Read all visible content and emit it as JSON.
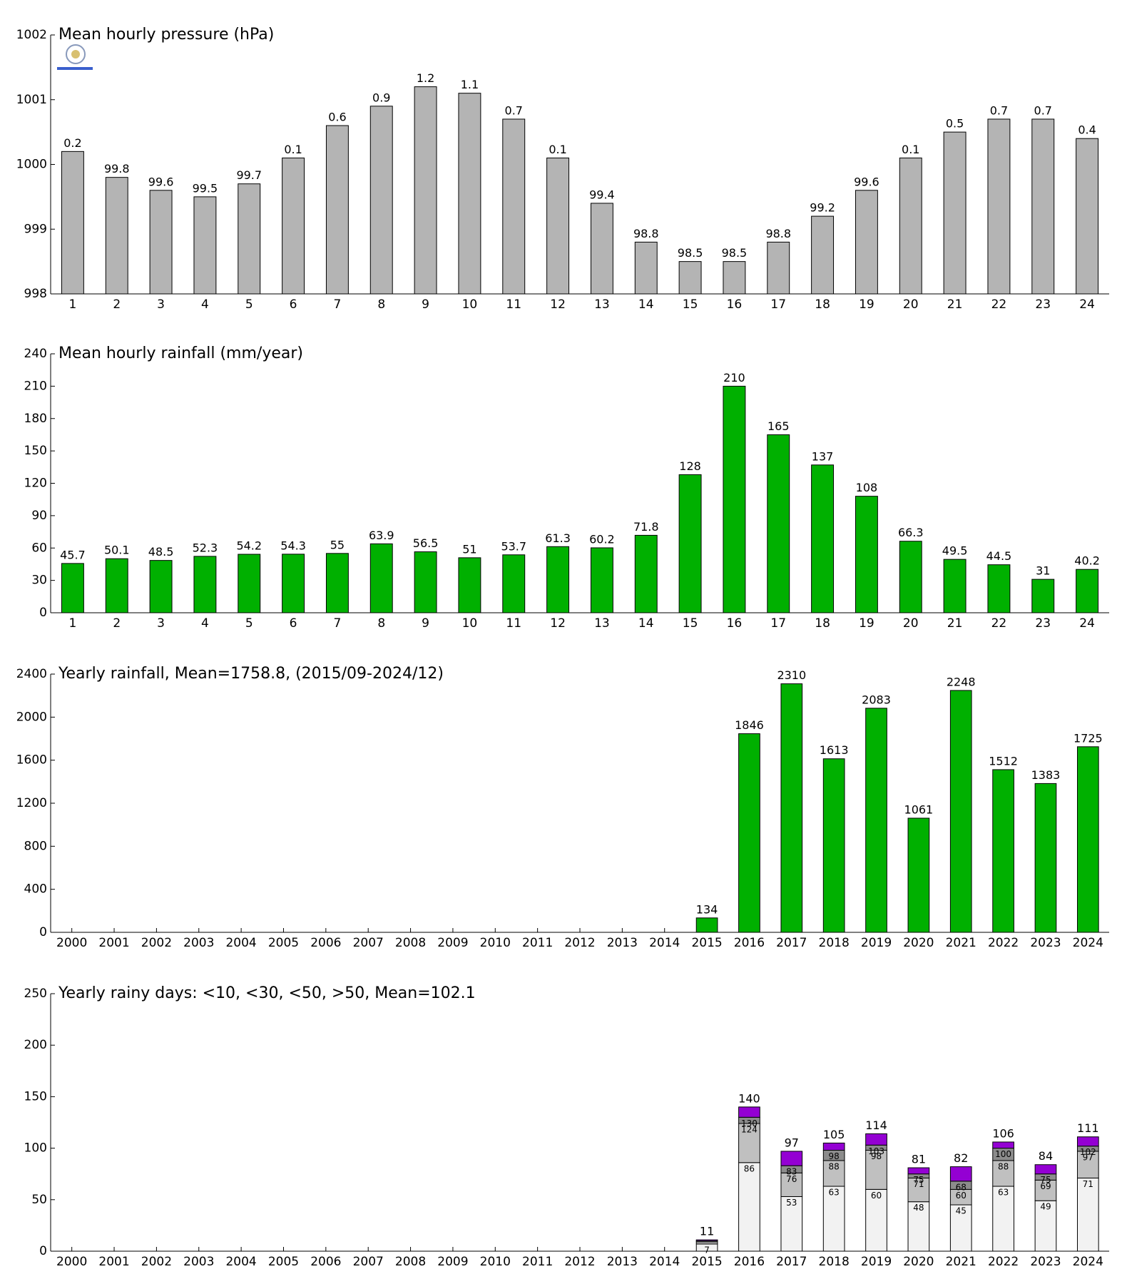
{
  "chart_data": [
    {
      "type": "bar",
      "title": "Mean hourly pressure (hPa)",
      "categories": [
        "1",
        "2",
        "3",
        "4",
        "5",
        "6",
        "7",
        "8",
        "9",
        "10",
        "11",
        "12",
        "13",
        "14",
        "15",
        "16",
        "17",
        "18",
        "19",
        "20",
        "21",
        "22",
        "23",
        "24"
      ],
      "values": [
        1000.2,
        999.8,
        999.6,
        999.5,
        999.7,
        1000.1,
        1000.6,
        1000.9,
        1001.2,
        1001.1,
        1000.7,
        1000.1,
        999.4,
        998.8,
        998.5,
        998.5,
        998.8,
        999.2,
        999.6,
        1000.1,
        1000.5,
        1000.7,
        1000.7,
        1000.4
      ],
      "value_labels": [
        "0.2",
        "99.8",
        "99.6",
        "99.5",
        "99.7",
        "0.1",
        "0.6",
        "0.9",
        "1.2",
        "1.1",
        "0.7",
        "0.1",
        "99.4",
        "98.8",
        "98.5",
        "98.5",
        "98.8",
        "99.2",
        "99.6",
        "0.1",
        "0.5",
        "0.7",
        "0.7",
        "0.4"
      ],
      "color": "#b4b4b4",
      "ylim": [
        998,
        1002
      ],
      "yticks": [
        998,
        999,
        1000,
        1001,
        1002
      ]
    },
    {
      "type": "bar",
      "title": "Mean hourly rainfall (mm/year)",
      "categories": [
        "1",
        "2",
        "3",
        "4",
        "5",
        "6",
        "7",
        "8",
        "9",
        "10",
        "11",
        "12",
        "13",
        "14",
        "15",
        "16",
        "17",
        "18",
        "19",
        "20",
        "21",
        "22",
        "23",
        "24"
      ],
      "values": [
        45.7,
        50.1,
        48.5,
        52.3,
        54.2,
        54.3,
        55,
        63.9,
        56.5,
        51,
        53.7,
        61.3,
        60.2,
        71.8,
        128,
        210,
        165,
        137,
        108,
        66.3,
        49.5,
        44.5,
        31,
        40.2
      ],
      "color": "#00b000",
      "ylim": [
        0,
        240
      ],
      "yticks": [
        0,
        30,
        60,
        90,
        120,
        150,
        180,
        210,
        240
      ]
    },
    {
      "type": "bar",
      "title": "Yearly rainfall, Mean=1758.8, (2015/09-2024/12)",
      "categories": [
        "2000",
        "2001",
        "2002",
        "2003",
        "2004",
        "2005",
        "2006",
        "2007",
        "2008",
        "2009",
        "2010",
        "2011",
        "2012",
        "2013",
        "2014",
        "2015",
        "2016",
        "2017",
        "2018",
        "2019",
        "2020",
        "2021",
        "2022",
        "2023",
        "2024"
      ],
      "values": [
        null,
        null,
        null,
        null,
        null,
        null,
        null,
        null,
        null,
        null,
        null,
        null,
        null,
        null,
        null,
        134,
        1846,
        2310,
        1613,
        2083,
        1061,
        2248,
        1512,
        1383,
        1725
      ],
      "color": "#00b000",
      "ylim": [
        0,
        2400
      ],
      "yticks": [
        0,
        400,
        800,
        1200,
        1600,
        2000,
        2400
      ]
    },
    {
      "type": "stacked_bar",
      "title": "Yearly rainy days: <10, <30, <50, >50, Mean=102.1",
      "categories": [
        "2000",
        "2001",
        "2002",
        "2003",
        "2004",
        "2005",
        "2006",
        "2007",
        "2008",
        "2009",
        "2010",
        "2011",
        "2012",
        "2013",
        "2014",
        "2015",
        "2016",
        "2017",
        "2018",
        "2019",
        "2020",
        "2021",
        "2022",
        "2023",
        "2024"
      ],
      "series": [
        {
          "color": "#f2f2f2",
          "values": [
            null,
            null,
            null,
            null,
            null,
            null,
            null,
            null,
            null,
            null,
            null,
            null,
            null,
            null,
            null,
            7,
            86,
            53,
            63,
            60,
            48,
            45,
            63,
            49,
            71
          ]
        },
        {
          "color": "#c0c0c0",
          "values": [
            null,
            null,
            null,
            null,
            null,
            null,
            null,
            null,
            null,
            null,
            null,
            null,
            null,
            null,
            null,
            2,
            38,
            23,
            25,
            38,
            23,
            15,
            25,
            20,
            26
          ],
          "value_labels": [
            null,
            null,
            null,
            null,
            null,
            null,
            null,
            null,
            null,
            null,
            null,
            null,
            null,
            null,
            null,
            null,
            "124",
            "76",
            "88",
            "98",
            "71",
            "60",
            "88",
            "69",
            "97"
          ]
        },
        {
          "color": "#8c8c8c",
          "values": [
            null,
            null,
            null,
            null,
            null,
            null,
            null,
            null,
            null,
            null,
            null,
            null,
            null,
            null,
            null,
            1,
            6,
            7,
            10,
            5,
            4,
            8,
            12,
            6,
            5
          ],
          "value_labels": [
            null,
            null,
            null,
            null,
            null,
            null,
            null,
            null,
            null,
            null,
            null,
            null,
            null,
            null,
            null,
            null,
            "130",
            "83",
            "98",
            "103",
            "75",
            "68",
            "100",
            "75",
            "102"
          ]
        },
        {
          "color": "#9400d3",
          "values": [
            null,
            null,
            null,
            null,
            null,
            null,
            null,
            null,
            null,
            null,
            null,
            null,
            null,
            null,
            null,
            1,
            10,
            14,
            7,
            11,
            6,
            14,
            6,
            9,
            9
          ],
          "value_labels": [
            null,
            null,
            null,
            null,
            null,
            null,
            null,
            null,
            null,
            null,
            null,
            null,
            null,
            null,
            null,
            "11",
            "140",
            "97",
            "105",
            "114",
            "81",
            "82",
            "106",
            "84",
            "111"
          ]
        }
      ],
      "ylim": [
        0,
        250
      ],
      "yticks": [
        0,
        50,
        100,
        150,
        200,
        250
      ]
    }
  ]
}
